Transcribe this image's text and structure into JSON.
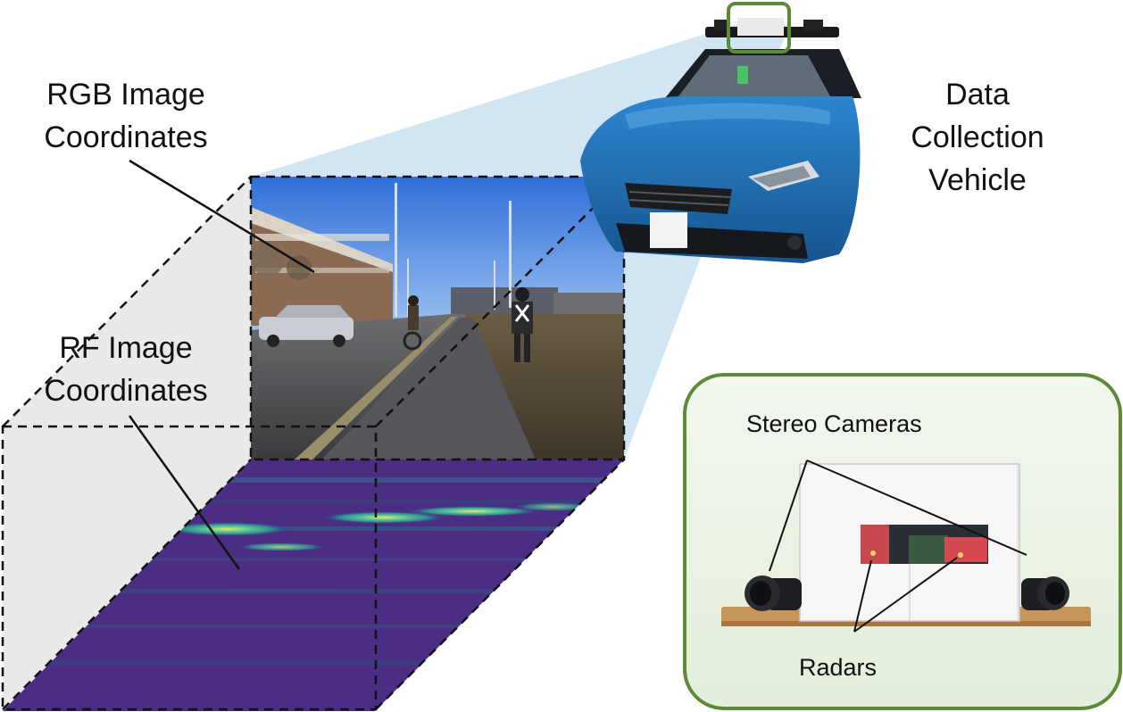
{
  "labels": {
    "rgb_image_coordinates": [
      "RGB Image",
      "Coordinates"
    ],
    "rf_image_coordinates": [
      "RF Image",
      "Coordinates"
    ],
    "data_collection_vehicle": [
      "Data",
      "Collection",
      "Vehicle"
    ]
  },
  "inset": {
    "stereo_cameras": "Stereo Cameras",
    "radars": "Radars"
  },
  "colors": {
    "projection_cone": "#c9e0f0",
    "inset_border": "#5c8a3a",
    "inset_fill": "#ecf3e6",
    "rf_base": "#4b2d84",
    "car_body": "#1f6fb2",
    "dashed_box": "#111111"
  }
}
